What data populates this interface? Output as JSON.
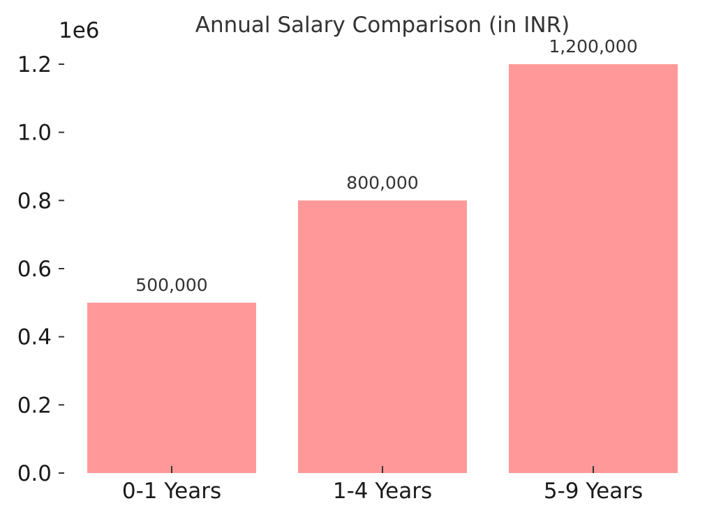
{
  "chart_data": {
    "type": "bar",
    "title": "Annual Salary Comparison (in INR)",
    "categories": [
      "0-1 Years",
      "1-4 Years",
      "5-9 Years"
    ],
    "values": [
      500000,
      800000,
      1200000
    ],
    "data_labels": [
      "500,000",
      "800,000",
      "1,200,000"
    ],
    "xlabel": "",
    "ylabel": "",
    "ylim": [
      0,
      1200000
    ],
    "y_ticks": [
      0,
      200000,
      400000,
      600000,
      800000,
      1000000,
      1200000
    ],
    "y_tick_labels": [
      "0.0",
      "0.2",
      "0.4",
      "0.6",
      "0.8",
      "1.0",
      "1.2"
    ],
    "y_offset_label": "1e6",
    "grid": false,
    "bar_color": "#ff9999"
  }
}
